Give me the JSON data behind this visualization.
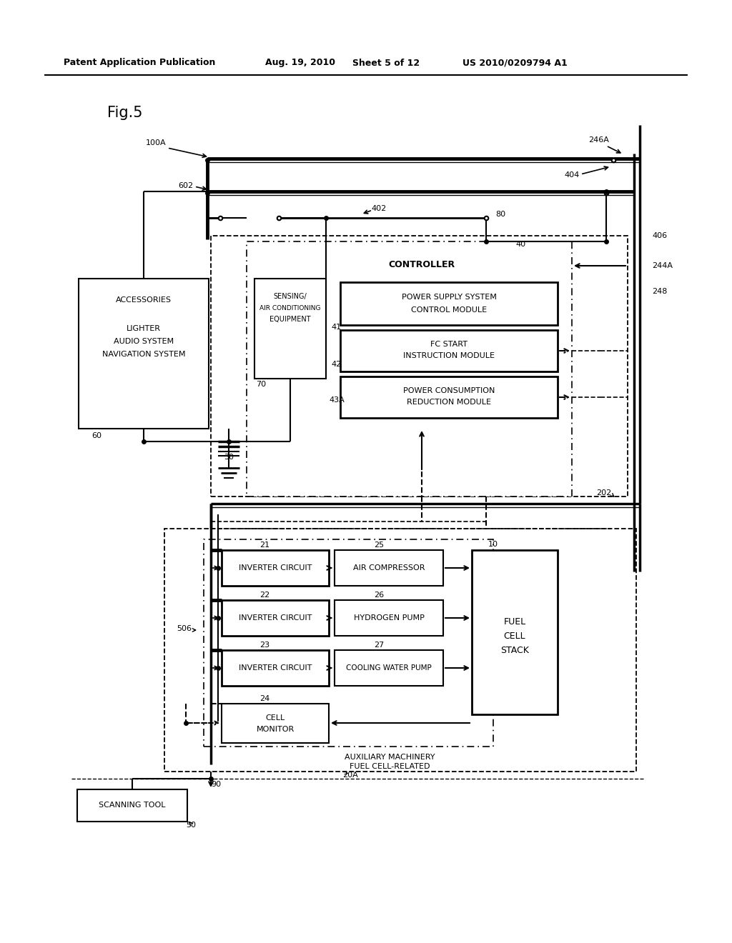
{
  "header_left": "Patent Application Publication",
  "header_mid1": "Aug. 19, 2010",
  "header_mid2": "Sheet 5 of 12",
  "header_right": "US 2010/0209794 A1",
  "fig_label": "Fig.5",
  "bg_color": "#ffffff"
}
